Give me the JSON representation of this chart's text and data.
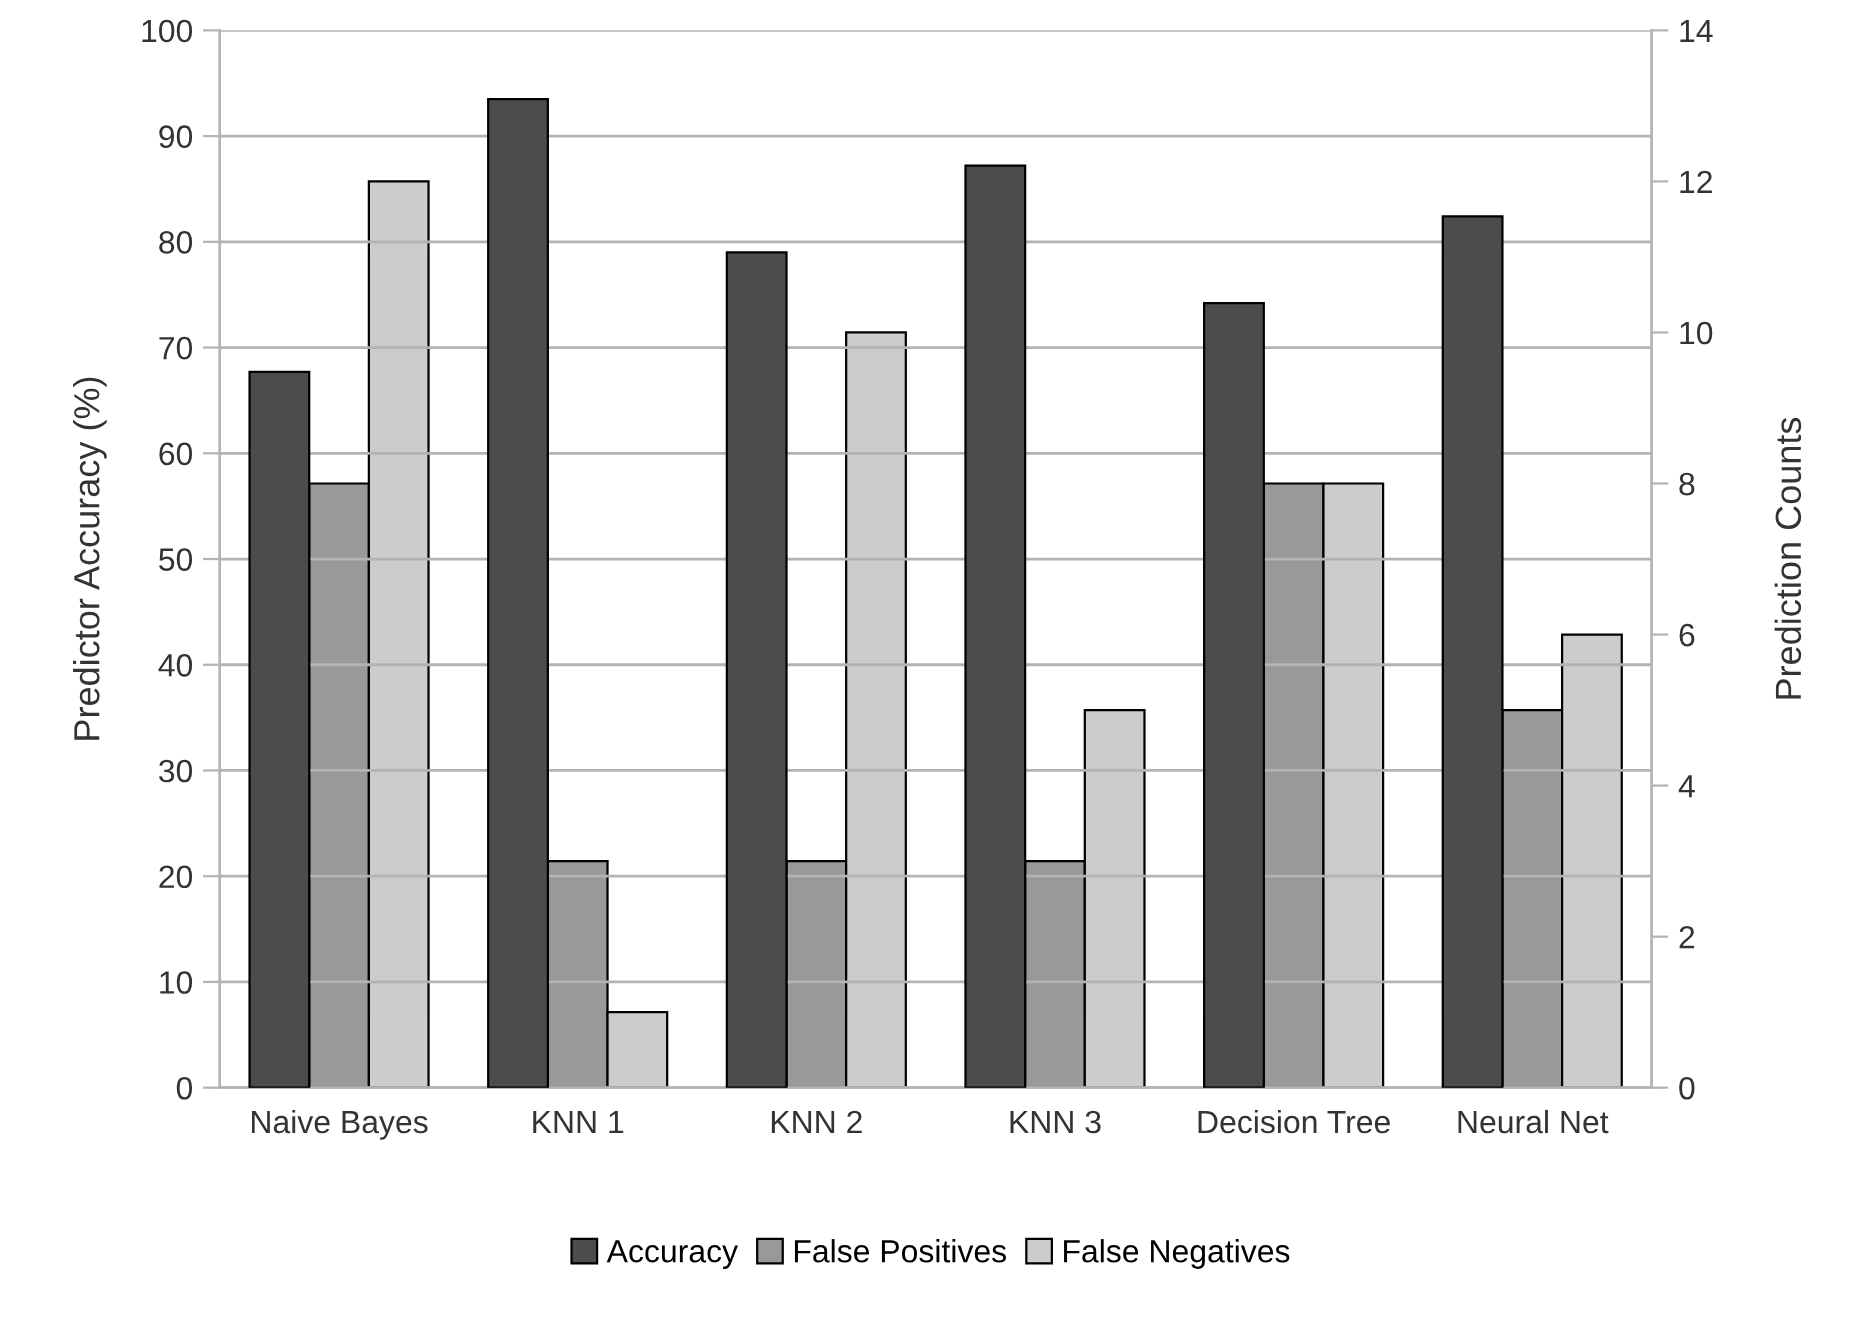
{
  "chart_data": {
    "type": "bar",
    "ylabel": "Predictor Accuracy (%)",
    "y2label": "Prediction Counts",
    "categories": [
      "Naive Bayes",
      "KNN 1",
      "KNN 2",
      "KNN 3",
      "Decision Tree",
      "Neural Net"
    ],
    "series": [
      {
        "name": "Accuracy",
        "color": "#4c4c4c",
        "values": [
          67.7,
          93.5,
          79.0,
          87.2,
          74.2,
          82.4
        ]
      },
      {
        "name": "False Positives",
        "color": "#999999",
        "axis": "y2",
        "values": [
          8,
          3,
          3,
          3,
          8,
          5
        ]
      },
      {
        "name": "False Negatives",
        "color": "#cccccc",
        "axis": "y2",
        "values": [
          12,
          1,
          10,
          5,
          8,
          6
        ]
      }
    ],
    "ylim": [
      0,
      100
    ],
    "yticks": [
      0,
      10,
      20,
      30,
      40,
      50,
      60,
      70,
      80,
      90,
      100
    ],
    "y2lim": [
      0,
      14
    ],
    "y2ticks": [
      0,
      2,
      4,
      6,
      8,
      10,
      12,
      14
    ],
    "grid": "y",
    "legend": "bottom"
  }
}
